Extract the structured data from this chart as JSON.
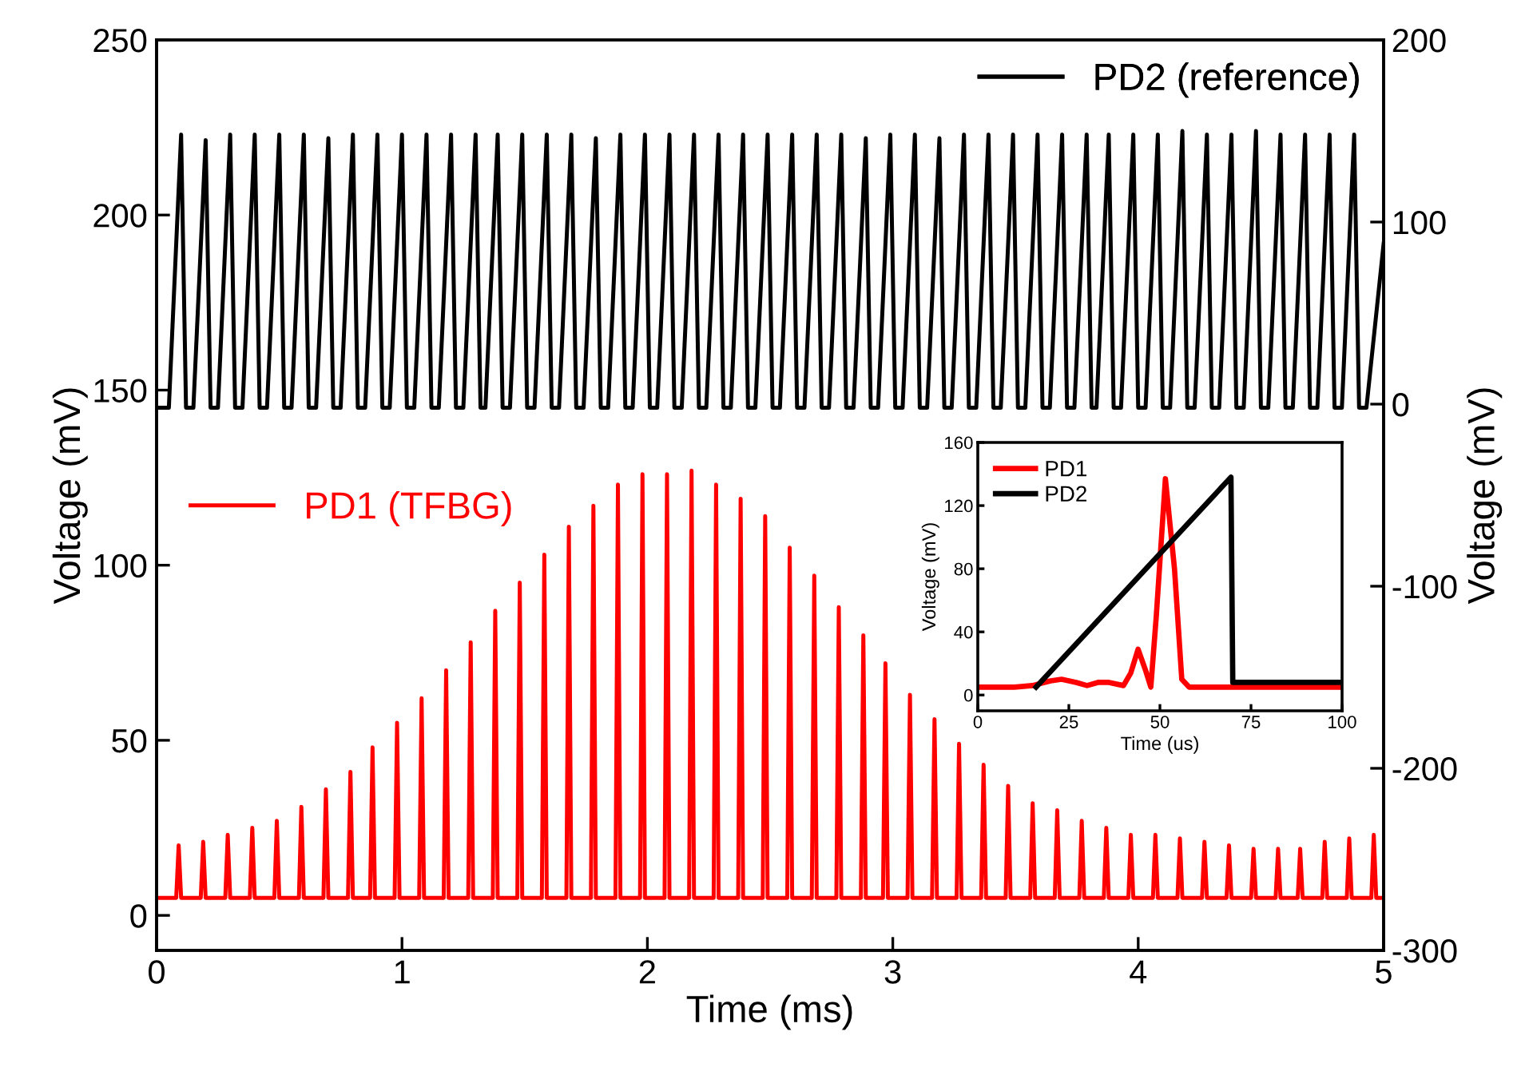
{
  "chart_data": [
    {
      "type": "line",
      "xlabel": "Time (ms)",
      "ylabel": "Voltage (mV)",
      "y2label": "Voltage (mV)",
      "xlim": [
        0,
        5
      ],
      "xticks": [
        0,
        1,
        2,
        3,
        4,
        5
      ],
      "ylim": [
        -10,
        250
      ],
      "yticks": [
        0,
        50,
        100,
        150,
        200,
        250
      ],
      "y2lim": [
        -300,
        200
      ],
      "y2ticks": [
        -300,
        -200,
        -100,
        0,
        100,
        200
      ],
      "legend": "top right",
      "grid": false,
      "marker": "none",
      "line_style": "solid",
      "series": [
        {
          "name": "PD2 (reference)",
          "color": "#000000",
          "axis": "y2",
          "x": [
            0,
            0.05,
            0.1,
            0.12,
            0.15,
            0.2,
            0.22,
            0.25,
            0.3,
            0.32,
            0.35,
            0.4,
            0.42,
            0.45,
            0.5,
            0.52,
            0.55,
            0.6,
            0.62,
            0.65,
            0.7,
            0.72,
            0.75,
            0.8,
            0.82,
            0.85,
            0.9,
            0.92,
            0.95,
            1.0,
            1.02,
            1.05,
            1.1,
            1.12,
            1.15,
            1.2,
            1.22,
            1.25,
            1.3,
            1.32,
            1.34,
            1.39,
            1.41,
            1.44,
            1.49,
            1.51,
            1.54,
            1.59,
            1.61,
            1.64,
            1.69,
            1.71,
            1.74,
            1.79,
            1.81,
            1.84,
            1.89,
            1.91,
            1.94,
            1.99,
            2.01,
            2.04,
            2.09,
            2.11,
            2.14,
            2.19,
            2.21,
            2.24,
            2.29,
            2.31,
            2.34,
            2.39,
            2.41,
            2.44,
            2.49,
            2.51,
            2.54,
            2.59,
            2.61,
            2.64,
            2.69,
            2.71,
            2.74,
            2.79,
            2.81,
            2.84,
            2.89,
            2.91,
            2.94,
            2.99,
            3.01,
            3.04,
            3.09,
            3.11,
            3.14,
            3.19,
            3.21,
            3.24,
            3.29,
            3.31,
            3.34,
            3.39,
            3.41,
            3.44,
            3.49,
            3.51,
            3.54,
            3.59,
            3.61,
            3.64,
            3.69,
            3.71,
            3.74,
            3.79,
            3.81,
            3.83,
            3.88,
            3.9,
            3.93,
            3.98,
            4.0,
            4.03,
            4.08,
            4.1,
            4.13,
            4.18,
            4.2,
            4.23,
            4.28,
            4.3,
            4.33,
            4.38,
            4.4,
            4.43,
            4.48,
            4.5,
            4.53,
            4.58,
            4.6,
            4.63,
            4.68,
            4.7,
            4.73,
            4.78,
            4.8,
            4.83,
            4.88,
            4.9,
            4.93,
            5.0
          ],
          "values": [
            -2,
            -2,
            148,
            -2,
            -2,
            145,
            -2,
            -2,
            148,
            -2,
            -2,
            148,
            -2,
            -2,
            148,
            -2,
            -2,
            148,
            -2,
            -2,
            146,
            -2,
            -2,
            148,
            -2,
            -2,
            148,
            -2,
            -2,
            148,
            -2,
            -2,
            148,
            -2,
            -2,
            148,
            -2,
            -2,
            148,
            -2,
            -2,
            148,
            -2,
            -2,
            148,
            -2,
            -2,
            148,
            -2,
            -2,
            148,
            -2,
            -2,
            146,
            -2,
            -2,
            148,
            -2,
            -2,
            148,
            -2,
            -2,
            148,
            -2,
            -2,
            148,
            -2,
            -2,
            148,
            -2,
            -2,
            148,
            -2,
            -2,
            148,
            -2,
            -2,
            148,
            -2,
            -2,
            148,
            -2,
            -2,
            148,
            -2,
            -2,
            146,
            -2,
            -2,
            148,
            -2,
            -2,
            148,
            -2,
            -2,
            146,
            -2,
            -2,
            148,
            -2,
            -2,
            148,
            -2,
            -2,
            148,
            -2,
            -2,
            148,
            -2,
            -2,
            148,
            -2,
            -2,
            148,
            -2,
            -2,
            148,
            -2,
            -2,
            148,
            -2,
            -2,
            148,
            -2,
            -2,
            150,
            -2,
            -2,
            148,
            -2,
            -2,
            148,
            -2,
            -2,
            150,
            -2,
            -2,
            148,
            -2,
            -2,
            148,
            -2,
            -2,
            148,
            -2,
            -2,
            148,
            -2,
            -2,
            88
          ]
        },
        {
          "name": "PD1 (TFBG)",
          "color": "#ff0000",
          "axis": "y",
          "x": [
            0,
            0.08,
            0.09,
            0.1,
            0.18,
            0.19,
            0.2,
            0.28,
            0.29,
            0.3,
            0.38,
            0.39,
            0.4,
            0.48,
            0.49,
            0.5,
            0.58,
            0.59,
            0.6,
            0.68,
            0.69,
            0.7,
            0.78,
            0.79,
            0.8,
            0.87,
            0.88,
            0.89,
            0.97,
            0.98,
            0.99,
            1.07,
            1.08,
            1.09,
            1.17,
            1.18,
            1.19,
            1.27,
            1.28,
            1.29,
            1.37,
            1.38,
            1.39,
            1.47,
            1.48,
            1.49,
            1.57,
            1.58,
            1.59,
            1.67,
            1.68,
            1.69,
            1.77,
            1.78,
            1.79,
            1.87,
            1.88,
            1.89,
            1.97,
            1.98,
            1.99,
            2.07,
            2.08,
            2.09,
            2.17,
            2.18,
            2.19,
            2.27,
            2.28,
            2.29,
            2.37,
            2.38,
            2.39,
            2.47,
            2.48,
            2.49,
            2.57,
            2.58,
            2.59,
            2.67,
            2.68,
            2.69,
            2.77,
            2.78,
            2.79,
            2.87,
            2.88,
            2.89,
            2.96,
            2.97,
            2.98,
            3.06,
            3.07,
            3.08,
            3.16,
            3.17,
            3.18,
            3.26,
            3.27,
            3.28,
            3.36,
            3.37,
            3.38,
            3.46,
            3.47,
            3.48,
            3.56,
            3.57,
            3.58,
            3.66,
            3.67,
            3.68,
            3.76,
            3.77,
            3.78,
            3.86,
            3.87,
            3.88,
            3.96,
            3.97,
            3.98,
            4.06,
            4.07,
            4.08,
            4.16,
            4.17,
            4.18,
            4.26,
            4.27,
            4.28,
            4.36,
            4.37,
            4.38,
            4.46,
            4.47,
            4.48,
            4.56,
            4.57,
            4.58,
            4.65,
            4.66,
            4.67,
            4.75,
            4.76,
            4.77,
            4.85,
            4.86,
            4.87,
            4.95,
            4.96,
            4.97,
            5.0
          ],
          "values": [
            5,
            5,
            20,
            5,
            5,
            21,
            5,
            5,
            23,
            5,
            5,
            25,
            5,
            5,
            27,
            5,
            5,
            31,
            5,
            5,
            36,
            5,
            5,
            41,
            5,
            5,
            48,
            5,
            5,
            55,
            5,
            5,
            62,
            5,
            5,
            70,
            5,
            5,
            78,
            5,
            5,
            87,
            5,
            5,
            95,
            5,
            5,
            103,
            5,
            5,
            111,
            5,
            5,
            117,
            5,
            5,
            123,
            5,
            5,
            126,
            5,
            5,
            126,
            5,
            5,
            127,
            5,
            5,
            123,
            5,
            5,
            119,
            5,
            5,
            114,
            5,
            5,
            105,
            5,
            5,
            97,
            5,
            5,
            88,
            5,
            5,
            80,
            5,
            5,
            72,
            5,
            5,
            63,
            5,
            5,
            56,
            5,
            5,
            49,
            5,
            5,
            43,
            5,
            5,
            37,
            5,
            5,
            32,
            5,
            5,
            30,
            5,
            5,
            27,
            5,
            5,
            25,
            5,
            5,
            23,
            5,
            5,
            23,
            5,
            5,
            22,
            5,
            5,
            21,
            5,
            5,
            20,
            5,
            5,
            19,
            5,
            5,
            19,
            5,
            5,
            19,
            5,
            5,
            21,
            5,
            5,
            22,
            5,
            5,
            23,
            5,
            5
          ]
        }
      ]
    },
    {
      "type": "line",
      "xlabel": "Time (us)",
      "ylabel": "Voltage (mV)",
      "xlim": [
        0,
        100
      ],
      "xticks": [
        0,
        25,
        50,
        75,
        100
      ],
      "ylim": [
        -10,
        160
      ],
      "yticks": [
        0,
        40,
        80,
        120,
        160
      ],
      "legend": "top left",
      "grid": false,
      "marker": "none",
      "line_style": "solid",
      "series": [
        {
          "name": "PD1",
          "color": "#ff0000",
          "x": [
            0,
            10,
            15,
            20,
            23,
            27,
            30,
            33,
            36,
            40,
            42,
            44,
            46,
            47.5,
            49,
            51.5,
            54,
            56,
            58,
            65,
            80,
            100
          ],
          "values": [
            5,
            5,
            6,
            9,
            10,
            8,
            6,
            8,
            8,
            6,
            14,
            29,
            16,
            5,
            50,
            137,
            80,
            10,
            5,
            5,
            5,
            5
          ]
        },
        {
          "name": "PD2",
          "color": "#000000",
          "x": [
            16,
            69.5,
            70,
            100
          ],
          "values": [
            5,
            138,
            8,
            8
          ]
        }
      ]
    }
  ]
}
